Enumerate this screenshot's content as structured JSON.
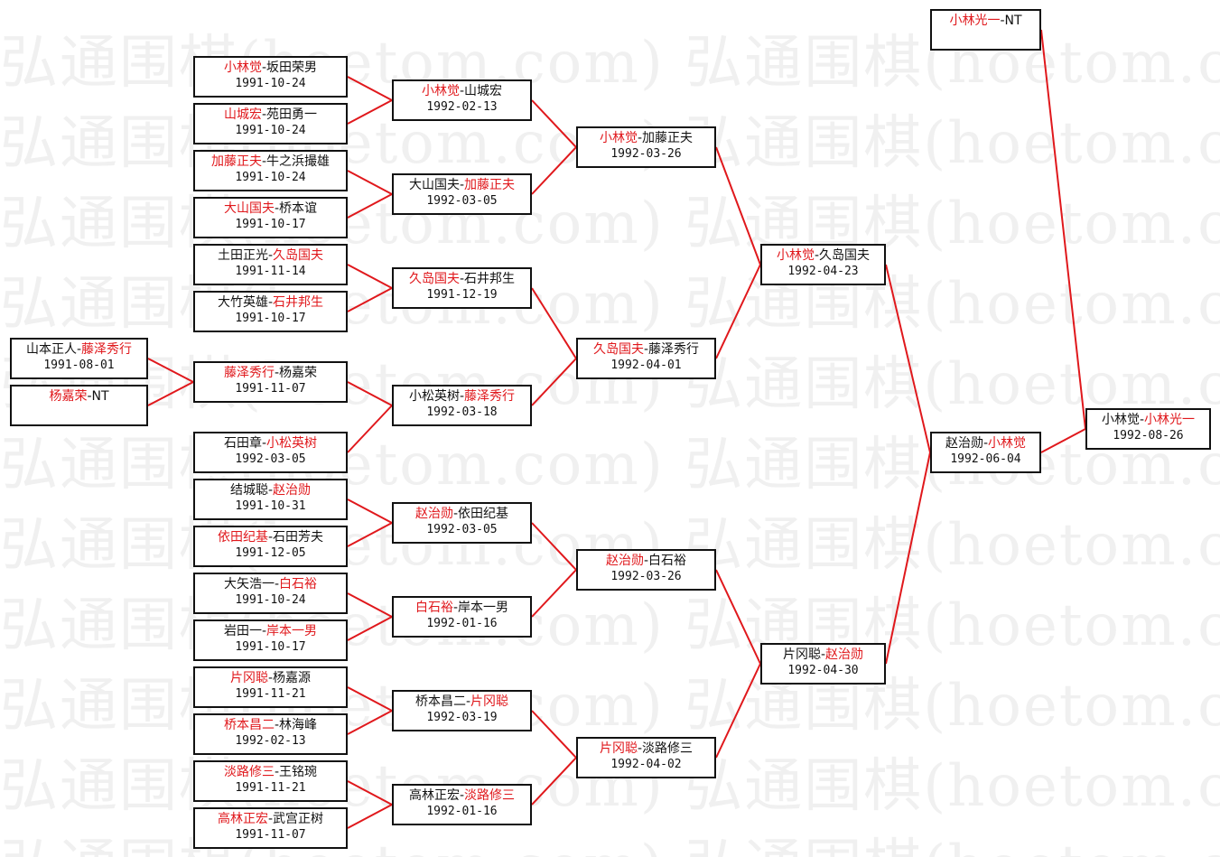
{
  "watermark": "弘通围棋(hoetom.com)",
  "colors": {
    "winner": "#e0181c",
    "line": "#e0181c",
    "border": "#111111"
  },
  "matches": [
    {
      "id": "B1",
      "players": [
        "小林觉",
        "坂田荣男"
      ],
      "winner": 0,
      "date": "1991-10-24"
    },
    {
      "id": "B2",
      "players": [
        "山城宏",
        "苑田勇一"
      ],
      "winner": 0,
      "date": "1991-10-24"
    },
    {
      "id": "B3",
      "players": [
        "加藤正夫",
        "牛之浜撮雄"
      ],
      "winner": 0,
      "date": "1991-10-24"
    },
    {
      "id": "B4",
      "players": [
        "大山国夫",
        "桥本谊"
      ],
      "winner": 0,
      "date": "1991-10-17"
    },
    {
      "id": "B5",
      "players": [
        "土田正光",
        "久岛国夫"
      ],
      "winner": 1,
      "date": "1991-11-14"
    },
    {
      "id": "B6",
      "players": [
        "大竹英雄",
        "石井邦生"
      ],
      "winner": 1,
      "date": "1991-10-17"
    },
    {
      "id": "A1",
      "players": [
        "山本正人",
        "藤泽秀行"
      ],
      "winner": 1,
      "date": "1991-08-01"
    },
    {
      "id": "A2",
      "players": [
        "杨嘉荣",
        "NT"
      ],
      "winner": 0,
      "date": ""
    },
    {
      "id": "B7",
      "players": [
        "藤泽秀行",
        "杨嘉荣"
      ],
      "winner": 0,
      "date": "1991-11-07",
      "children": [
        "A1",
        "A2"
      ]
    },
    {
      "id": "B8",
      "players": [
        "石田章",
        "小松英树"
      ],
      "winner": 1,
      "date": "1992-03-05"
    },
    {
      "id": "B9",
      "players": [
        "结城聪",
        "赵治勋"
      ],
      "winner": 1,
      "date": "1991-10-31"
    },
    {
      "id": "B10",
      "players": [
        "依田纪基",
        "石田芳夫"
      ],
      "winner": 0,
      "date": "1991-12-05"
    },
    {
      "id": "B11",
      "players": [
        "大矢浩一",
        "白石裕"
      ],
      "winner": 1,
      "date": "1991-10-24"
    },
    {
      "id": "B12",
      "players": [
        "岩田一",
        "岸本一男"
      ],
      "winner": 1,
      "date": "1991-10-17"
    },
    {
      "id": "B13",
      "players": [
        "片冈聪",
        "杨嘉源"
      ],
      "winner": 0,
      "date": "1991-11-21"
    },
    {
      "id": "B14",
      "players": [
        "桥本昌二",
        "林海峰"
      ],
      "winner": 0,
      "date": "1992-02-13"
    },
    {
      "id": "B15",
      "players": [
        "淡路修三",
        "王铭琬"
      ],
      "winner": 0,
      "date": "1991-11-21"
    },
    {
      "id": "B16",
      "players": [
        "高林正宏",
        "武宫正树"
      ],
      "winner": 0,
      "date": "1991-11-07"
    },
    {
      "id": "C1",
      "players": [
        "小林觉",
        "山城宏"
      ],
      "winner": 0,
      "date": "1992-02-13",
      "children": [
        "B1",
        "B2"
      ]
    },
    {
      "id": "C2",
      "players": [
        "大山国夫",
        "加藤正夫"
      ],
      "winner": 1,
      "date": "1992-03-05",
      "children": [
        "B3",
        "B4"
      ]
    },
    {
      "id": "C3",
      "players": [
        "久岛国夫",
        "石井邦生"
      ],
      "winner": 0,
      "date": "1991-12-19",
      "children": [
        "B5",
        "B6"
      ]
    },
    {
      "id": "C4",
      "players": [
        "小松英树",
        "藤泽秀行"
      ],
      "winner": 1,
      "date": "1992-03-18",
      "children": [
        "B7",
        "B8"
      ]
    },
    {
      "id": "C5",
      "players": [
        "赵治勋",
        "依田纪基"
      ],
      "winner": 0,
      "date": "1992-03-05",
      "children": [
        "B9",
        "B10"
      ]
    },
    {
      "id": "C6",
      "players": [
        "白石裕",
        "岸本一男"
      ],
      "winner": 0,
      "date": "1992-01-16",
      "children": [
        "B11",
        "B12"
      ]
    },
    {
      "id": "C7",
      "players": [
        "桥本昌二",
        "片冈聪"
      ],
      "winner": 1,
      "date": "1992-03-19",
      "children": [
        "B13",
        "B14"
      ]
    },
    {
      "id": "C8",
      "players": [
        "高林正宏",
        "淡路修三"
      ],
      "winner": 1,
      "date": "1992-01-16",
      "children": [
        "B15",
        "B16"
      ]
    },
    {
      "id": "D1",
      "players": [
        "小林觉",
        "加藤正夫"
      ],
      "winner": 0,
      "date": "1992-03-26",
      "children": [
        "C1",
        "C2"
      ]
    },
    {
      "id": "D2",
      "players": [
        "久岛国夫",
        "藤泽秀行"
      ],
      "winner": 0,
      "date": "1992-04-01",
      "children": [
        "C3",
        "C4"
      ]
    },
    {
      "id": "D3",
      "players": [
        "赵治勋",
        "白石裕"
      ],
      "winner": 0,
      "date": "1992-03-26",
      "children": [
        "C5",
        "C6"
      ]
    },
    {
      "id": "D4",
      "players": [
        "片冈聪",
        "淡路修三"
      ],
      "winner": 0,
      "date": "1992-04-02",
      "children": [
        "C7",
        "C8"
      ]
    },
    {
      "id": "E1",
      "players": [
        "小林觉",
        "久岛国夫"
      ],
      "winner": 0,
      "date": "1992-04-23",
      "children": [
        "D1",
        "D2"
      ]
    },
    {
      "id": "E2",
      "players": [
        "片冈聪",
        "赵治勋"
      ],
      "winner": 1,
      "date": "1992-04-30",
      "children": [
        "D3",
        "D4"
      ]
    },
    {
      "id": "F1",
      "players": [
        "赵治勋",
        "小林觉"
      ],
      "winner": 1,
      "date": "1992-06-04",
      "children": [
        "E1",
        "E2"
      ]
    },
    {
      "id": "F0",
      "players": [
        "小林光一",
        "NT"
      ],
      "winner": 0,
      "date": ""
    },
    {
      "id": "G1",
      "players": [
        "小林觉",
        "小林光一"
      ],
      "winner": 1,
      "date": "1992-08-26",
      "children": [
        "F0",
        "F1"
      ]
    }
  ]
}
